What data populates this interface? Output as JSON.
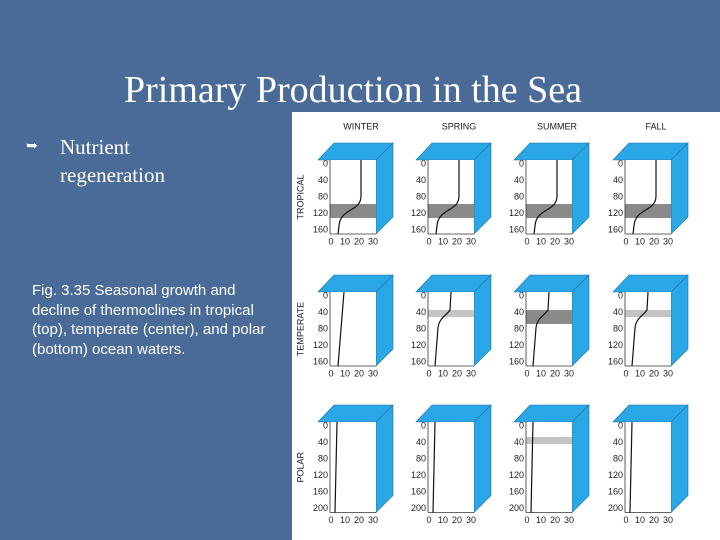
{
  "title": "Primary Production in the Sea",
  "bullet": "Nutrient regeneration",
  "caption": "Fig. 3.35 Seasonal growth and decline of thermoclines in tropical (top), temperate (center), and polar (bottom) ocean waters.",
  "figure": {
    "columns": [
      "WINTER",
      "SPRING",
      "SUMMER",
      "FALL"
    ],
    "rows": [
      {
        "label": "TROPICAL",
        "depth_ticks": [
          0,
          40,
          80,
          120,
          160
        ]
      },
      {
        "label": "TEMPERATE",
        "depth_ticks": [
          0,
          40,
          80,
          120,
          160
        ]
      },
      {
        "label": "POLAR",
        "depth_ticks": [
          0,
          40,
          80,
          120,
          160,
          200
        ]
      }
    ],
    "temperature_ticks": [
      0,
      10,
      20,
      30
    ]
  }
}
